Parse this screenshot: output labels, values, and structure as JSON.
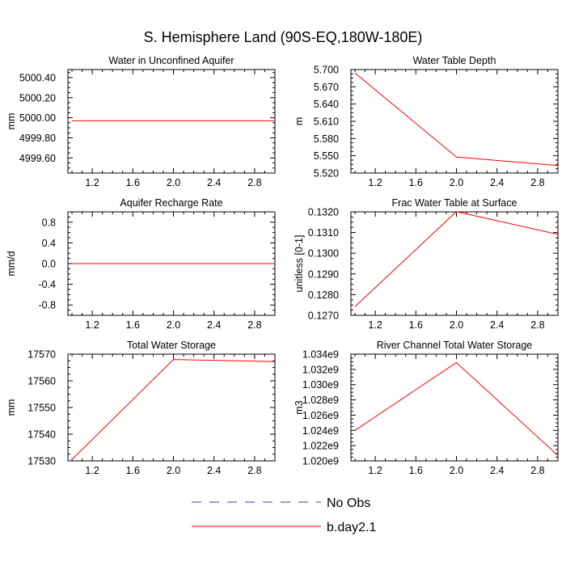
{
  "figure": {
    "title": "S. Hemisphere Land (90S-EQ,180W-180E)"
  },
  "legend": {
    "position": "bottom-center",
    "entries": [
      {
        "label": "No Obs",
        "color": "#3b3bd6",
        "dash": true
      },
      {
        "label": "b.day2.1",
        "color": "#ff0000",
        "dash": false
      }
    ]
  },
  "chart_data": [
    {
      "type": "line",
      "title": "Water in Unconfined Aquifer",
      "ylabel": "mm",
      "xlim": [
        0.96,
        3.0
      ],
      "ylim": [
        4999.45,
        5000.48
      ],
      "xticks": [
        1.2,
        1.6,
        2.0,
        2.4,
        2.8
      ],
      "xtick_labels": [
        "1.2",
        "1.6",
        "2.0",
        "2.4",
        "2.8"
      ],
      "yticks": [
        4999.6,
        4999.8,
        5000.0,
        5000.2,
        5000.4
      ],
      "ytick_labels": [
        "4999.60",
        "4999.80",
        "5000.00",
        "5000.20",
        "5000.40"
      ],
      "series": [
        {
          "name": "b.day2.1",
          "color": "#ff0000",
          "x": [
            1.0,
            2.0,
            3.0
          ],
          "y": [
            4999.97,
            4999.97,
            4999.97
          ]
        }
      ]
    },
    {
      "type": "line",
      "title": "Water Table Depth",
      "ylabel": "m",
      "xlim": [
        0.96,
        3.0
      ],
      "ylim": [
        5.52,
        5.7
      ],
      "xticks": [
        1.2,
        1.6,
        2.0,
        2.4,
        2.8
      ],
      "xtick_labels": [
        "1.2",
        "1.6",
        "2.0",
        "2.4",
        "2.8"
      ],
      "yticks": [
        5.52,
        5.55,
        5.58,
        5.61,
        5.64,
        5.67,
        5.7
      ],
      "ytick_labels": [
        "5.520",
        "5.550",
        "5.580",
        "5.610",
        "5.640",
        "5.670",
        "5.700"
      ],
      "series": [
        {
          "name": "b.day2.1",
          "color": "#ff0000",
          "x": [
            1.0,
            2.0,
            3.0
          ],
          "y": [
            5.694,
            5.548,
            5.533
          ]
        }
      ]
    },
    {
      "type": "line",
      "title": "Aquifer Recharge Rate",
      "ylabel": "mm/d",
      "xlim": [
        0.96,
        3.0
      ],
      "ylim": [
        -1.0,
        1.0
      ],
      "xticks": [
        1.2,
        1.6,
        2.0,
        2.4,
        2.8
      ],
      "xtick_labels": [
        "1.2",
        "1.6",
        "2.0",
        "2.4",
        "2.8"
      ],
      "yticks": [
        -0.8,
        -0.4,
        0.0,
        0.4,
        0.8
      ],
      "ytick_labels": [
        "-0.8",
        "-0.4",
        "0.0",
        "0.4",
        "0.8"
      ],
      "series": [
        {
          "name": "b.day2.1",
          "color": "#ff0000",
          "x": [
            1.0,
            2.0,
            3.0
          ],
          "y": [
            0.0,
            0.0,
            0.0
          ]
        }
      ]
    },
    {
      "type": "line",
      "title": "Frac Water Table at Surface",
      "ylabel": "unitless [0-1]",
      "xlim": [
        0.96,
        3.0
      ],
      "ylim": [
        0.127,
        0.132
      ],
      "xticks": [
        1.2,
        1.6,
        2.0,
        2.4,
        2.8
      ],
      "xtick_labels": [
        "1.2",
        "1.6",
        "2.0",
        "2.4",
        "2.8"
      ],
      "yticks": [
        0.127,
        0.128,
        0.129,
        0.13,
        0.131,
        0.132
      ],
      "ytick_labels": [
        "0.1270",
        "0.1280",
        "0.1290",
        "0.1300",
        "0.1310",
        "0.1320"
      ],
      "series": [
        {
          "name": "b.day2.1",
          "color": "#ff0000",
          "x": [
            1.0,
            2.0,
            3.0
          ],
          "y": [
            0.12742,
            0.13201,
            0.13091
          ]
        }
      ]
    },
    {
      "type": "line",
      "title": "Total Water Storage",
      "ylabel": "mm",
      "xlim": [
        0.96,
        3.0
      ],
      "ylim": [
        17530,
        17570
      ],
      "xticks": [
        1.2,
        1.6,
        2.0,
        2.4,
        2.8
      ],
      "xtick_labels": [
        "1.2",
        "1.6",
        "2.0",
        "2.4",
        "2.8"
      ],
      "yticks": [
        17530,
        17540,
        17550,
        17560,
        17570
      ],
      "ytick_labels": [
        "17530",
        "17540",
        "17550",
        "17560",
        "17570"
      ],
      "series": [
        {
          "name": "b.day2.1",
          "color": "#ff0000",
          "x": [
            1.0,
            2.0,
            3.0
          ],
          "y": [
            17530.5,
            17568.0,
            17567.2
          ]
        }
      ]
    },
    {
      "type": "line",
      "title": "River Channel Total Water Storage",
      "ylabel": "m3",
      "xlim": [
        0.96,
        3.0
      ],
      "ylim": [
        1.02,
        1.034
      ],
      "xticks": [
        1.2,
        1.6,
        2.0,
        2.4,
        2.8
      ],
      "xtick_labels": [
        "1.2",
        "1.6",
        "2.0",
        "2.4",
        "2.8"
      ],
      "yticks": [
        1.02,
        1.022,
        1.024,
        1.026,
        1.028,
        1.03,
        1.032,
        1.034
      ],
      "ytick_labels": [
        "1.020e9",
        "1.022e9",
        "1.024e9",
        "1.026e9",
        "1.028e9",
        "1.030e9",
        "1.032e9",
        "1.034e9"
      ],
      "series": [
        {
          "name": "b.day2.1",
          "color": "#ff0000",
          "x": [
            1.0,
            2.0,
            3.0
          ],
          "y": [
            1.024,
            1.0329,
            1.0207
          ]
        }
      ]
    }
  ]
}
